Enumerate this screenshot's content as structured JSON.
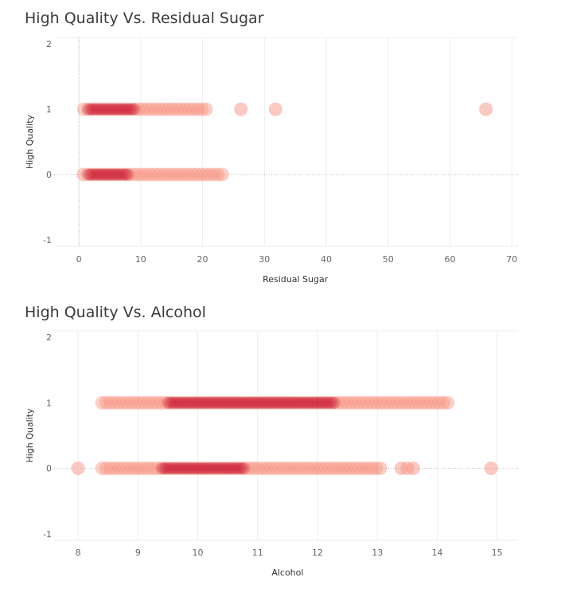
{
  "charts": [
    {
      "title": "High Quality Vs. Residual Sugar"
    },
    {
      "title": "High Quality Vs. Alcohol"
    }
  ],
  "chart_data": [
    {
      "type": "scatter",
      "title": "High Quality Vs. Residual Sugar",
      "xlabel": "Residual Sugar",
      "ylabel": "High Quality",
      "xlim": [
        -4,
        71
      ],
      "ylim": [
        -1.1,
        2.1
      ],
      "x_ticks": [
        0,
        10,
        20,
        30,
        40,
        50,
        60,
        70
      ],
      "y_ticks": [
        -1,
        0,
        1,
        2
      ],
      "grid": true,
      "mark_color": "#e34a33",
      "bands": [
        {
          "y": 1,
          "x_min": 0.8,
          "x_max": 21,
          "dense_min": 1.5,
          "dense_max": 9,
          "extra_x": [
            26.2,
            31.8,
            65.8
          ]
        },
        {
          "y": 0,
          "x_min": 0.7,
          "x_max": 23.5,
          "dense_min": 1.5,
          "dense_max": 8,
          "extra_x": []
        }
      ]
    },
    {
      "type": "scatter",
      "title": "High Quality Vs. Alcohol",
      "xlabel": "Alcohol",
      "ylabel": "High Quality",
      "xlim": [
        7.6,
        15.35
      ],
      "ylim": [
        -1.1,
        2.1
      ],
      "x_ticks": [
        8,
        9,
        10,
        11,
        12,
        13,
        14,
        15
      ],
      "y_ticks": [
        -1,
        0,
        1,
        2
      ],
      "grid": true,
      "mark_color": "#e34a33",
      "bands": [
        {
          "y": 1,
          "x_min": 8.4,
          "x_max": 14.2,
          "dense_min": 9.5,
          "dense_max": 12.3,
          "extra_x": []
        },
        {
          "y": 0,
          "x_min": 8.4,
          "x_max": 13.1,
          "dense_min": 9.4,
          "dense_max": 10.8,
          "extra_x": [
            8.0,
            13.4,
            13.5,
            13.6,
            14.9
          ]
        }
      ]
    }
  ]
}
